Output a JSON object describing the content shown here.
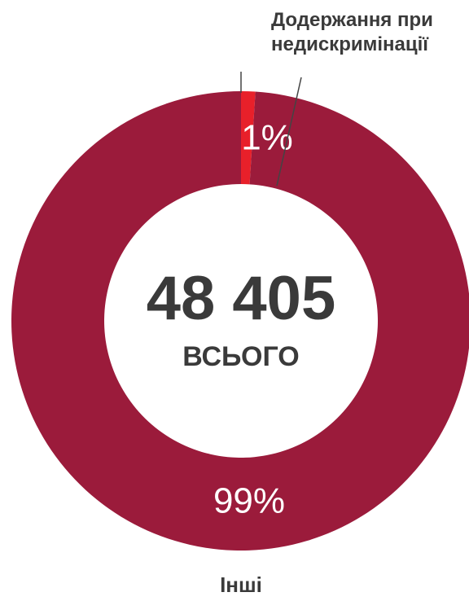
{
  "chart_data": {
    "type": "donut",
    "categories": [
      "Додержання при недискримінації",
      "Інші"
    ],
    "values": [
      1,
      99
    ],
    "value_labels": [
      "1%",
      "99%"
    ],
    "colors": [
      "#e8202a",
      "#9b1b3b"
    ],
    "center_text": [
      "48 405",
      "ВСЬОГО"
    ]
  }
}
